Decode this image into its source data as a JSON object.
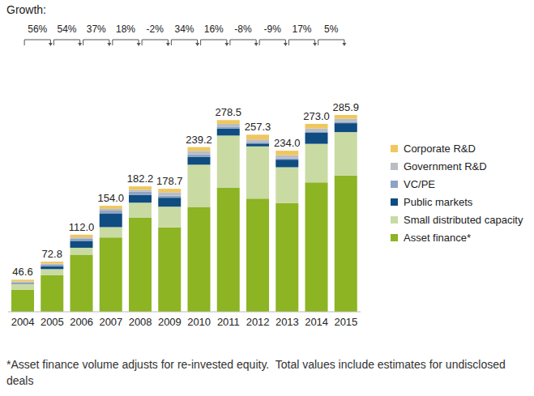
{
  "chart_data": {
    "type": "bar",
    "stacked": true,
    "tick_labels": "x",
    "categories": [
      "2004",
      "2005",
      "2006",
      "2007",
      "2008",
      "2009",
      "2010",
      "2011",
      "2012",
      "2013",
      "2014",
      "2015"
    ],
    "ylim": [
      0,
      300
    ],
    "series": [
      {
        "name": "Asset finance*",
        "color": "#8cb423",
        "values": [
          32,
          53,
          83,
          108,
          136.5,
          122.7,
          151.7,
          180,
          164.3,
          158,
          188,
          198
        ]
      },
      {
        "name": "Small distributed capacity",
        "color": "#c9dba3",
        "values": [
          8,
          9,
          10,
          15,
          22,
          30,
          62,
          76,
          76,
          52,
          56,
          63
        ]
      },
      {
        "name": "Public markets",
        "color": "#0f4c81",
        "values": [
          0.5,
          3.8,
          10,
          20,
          11,
          13,
          11,
          10,
          4,
          11,
          16,
          13
        ]
      },
      {
        "name": "VC/PE",
        "color": "#8fa3c4",
        "values": [
          2,
          2.5,
          3,
          4,
          5,
          3,
          4,
          3,
          2,
          2,
          2,
          2
        ]
      },
      {
        "name": "Government R&D",
        "color": "#b9bec4",
        "values": [
          1.5,
          1.7,
          2,
          2.5,
          2.7,
          5,
          5,
          4,
          4,
          4.5,
          4.5,
          4.5
        ]
      },
      {
        "name": "Corporate R&D",
        "color": "#f0c75e",
        "values": [
          2.6,
          2.8,
          4,
          4.5,
          5,
          5,
          5.5,
          5.5,
          7,
          6.5,
          6.5,
          5.4
        ]
      }
    ],
    "totals": [
      46.6,
      72.8,
      112.0,
      154.0,
      182.2,
      178.7,
      239.2,
      278.5,
      257.3,
      234.0,
      273.0,
      285.9
    ],
    "total_labels": [
      "46.6",
      "72.8",
      "112.0",
      "154.0",
      "182.2",
      "178.7",
      "239.2",
      "278.5",
      "257.3",
      "234.0",
      "273.0",
      "285.9"
    ],
    "growth": {
      "title": "Growth:",
      "values": [
        56,
        54,
        37,
        18,
        -2,
        34,
        16,
        -8,
        -9,
        17,
        5
      ],
      "value_labels": [
        "56%",
        "54%",
        "37%",
        "18%",
        "-2%",
        "34%",
        "16%",
        "-8%",
        "-9%",
        "17%",
        "5%"
      ]
    },
    "footnote": "*Asset finance volume adjusts for re-invested equity.  Total values include estimates for undisclosed deals"
  }
}
